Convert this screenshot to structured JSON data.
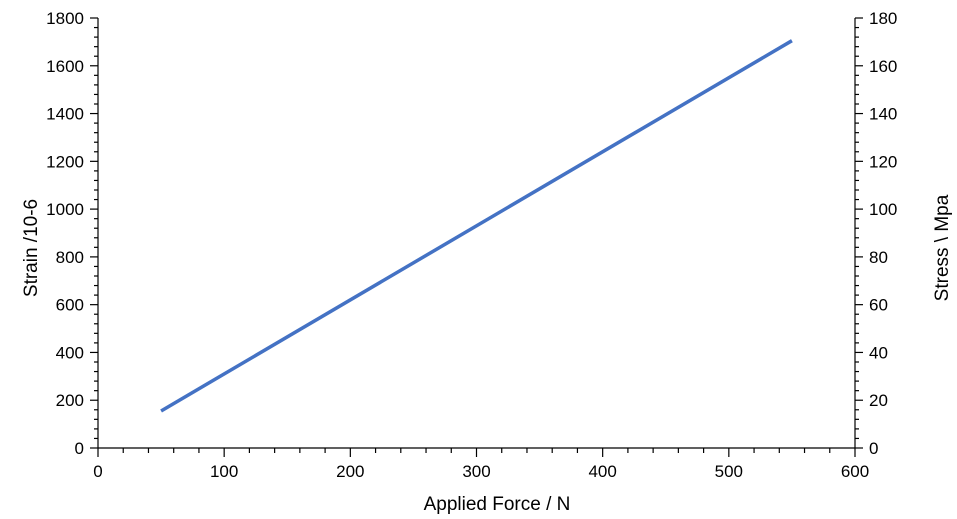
{
  "chart_data": {
    "type": "line",
    "xlabel": "Applied Force / N",
    "ylabel_left": "Strain /10-6",
    "ylabel_right": "Stress \\ Mpa",
    "xlim": [
      0,
      600
    ],
    "ylim_left": [
      0,
      1800
    ],
    "ylim_right": [
      0,
      180
    ],
    "x_ticks": [
      0,
      100,
      200,
      300,
      400,
      500,
      600
    ],
    "y_left_ticks": [
      0,
      200,
      400,
      600,
      800,
      1000,
      1200,
      1400,
      1600,
      1800
    ],
    "y_right_ticks": [
      0,
      20,
      40,
      60,
      80,
      100,
      120,
      140,
      160,
      180
    ],
    "grid": false,
    "legend": "none",
    "series": [
      {
        "color": "#4472C4",
        "axis": "left",
        "x": [
          50,
          550
        ],
        "y": [
          155,
          1705
        ]
      }
    ]
  }
}
